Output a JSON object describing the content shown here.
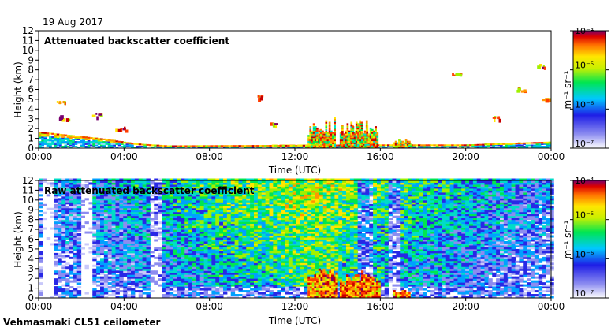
{
  "date": "19 Aug 2017",
  "footer": "Vehmasmaki CL51 ceilometer",
  "chart_data": [
    {
      "type": "heatmap",
      "title": "Attenuated backscatter coefficient",
      "xlabel": "Time (UTC)",
      "ylabel": "Height (km)",
      "x_ticks": [
        "00:00",
        "04:00",
        "08:00",
        "12:00",
        "16:00",
        "20:00",
        "00:00"
      ],
      "x_range_hours": [
        0,
        24
      ],
      "y_ticks": [
        "0",
        "1",
        "2",
        "3",
        "4",
        "5",
        "6",
        "7",
        "8",
        "9",
        "10",
        "11",
        "12"
      ],
      "ylim": [
        0,
        12
      ],
      "colorbar": {
        "unit": "m⁻¹ sr⁻¹",
        "scale": "log",
        "range": [
          1e-07,
          0.0001
        ],
        "tick_labels": [
          "10⁻⁴",
          "10⁻⁵",
          "10⁻⁶",
          "10⁻⁷"
        ]
      },
      "features": {
        "boundary_layer": [
          [
            0,
            1.6
          ],
          [
            3,
            0.9
          ],
          [
            4.5,
            0.4
          ],
          [
            6,
            0.2
          ],
          [
            12,
            0.25
          ],
          [
            16,
            0.3
          ],
          [
            20,
            0.3
          ],
          [
            24,
            0.6
          ]
        ],
        "convective_plumes": [
          [
            13,
            2.5
          ],
          [
            13.5,
            3.2
          ],
          [
            14.5,
            2.6
          ],
          [
            15,
            2.8
          ],
          [
            15.5,
            2.4
          ],
          [
            17,
            0.8
          ]
        ],
        "cloud_layers": [
          [
            1,
            4.8
          ],
          [
            1.2,
            3.2
          ],
          [
            2.7,
            3.4
          ],
          [
            3.8,
            2.0
          ],
          [
            10.3,
            5.3
          ],
          [
            11,
            2.6
          ],
          [
            19.6,
            7.7
          ],
          [
            21.3,
            3.1
          ],
          [
            22.6,
            6.0
          ],
          [
            23.5,
            8.5
          ],
          [
            23.6,
            5.1
          ]
        ]
      }
    },
    {
      "type": "heatmap",
      "title": "Raw attenuated backscatter coefficient",
      "xlabel": "Time (UTC)",
      "ylabel": "Height (km)",
      "x_ticks": [
        "00:00",
        "04:00",
        "08:00",
        "12:00",
        "16:00",
        "20:00",
        "00:00"
      ],
      "x_range_hours": [
        0,
        24
      ],
      "y_ticks": [
        "0",
        "1",
        "2",
        "3",
        "4",
        "5",
        "6",
        "7",
        "8",
        "9",
        "10",
        "11",
        "12"
      ],
      "ylim": [
        0,
        12
      ],
      "colorbar": {
        "unit": "m⁻¹ sr⁻¹",
        "scale": "log",
        "range": [
          1e-07,
          0.0001
        ],
        "tick_labels": [
          "10⁻⁴",
          "10⁻⁵",
          "10⁻⁶",
          "10⁻⁷"
        ]
      },
      "features": {
        "noise_peak_hour": 12.5,
        "low_signal_columns_hours": [
          0.3,
          2.1,
          5.4,
          15.2,
          16.5
        ]
      }
    }
  ]
}
